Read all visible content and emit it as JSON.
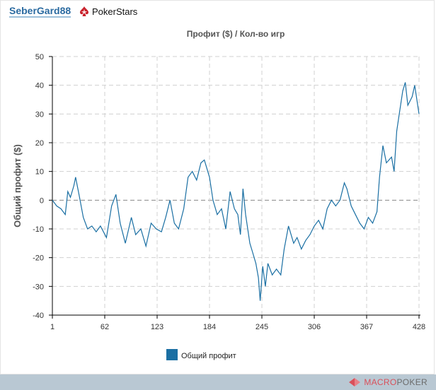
{
  "header": {
    "username": "SeberGard88",
    "room": "PokerStars",
    "room_icon": "pokerstars-spade-icon"
  },
  "footer": {
    "brand_part1": "MACRO",
    "brand_part2": "POKER",
    "brand_icon": "macropoker-logo-icon"
  },
  "colors": {
    "line": "#1a6fa3",
    "grid": "#d0d0d0",
    "zero": "#888888",
    "footer": "#b9c8d3",
    "brand_red": "#d9505a",
    "brand_gray": "#6b6b6b"
  },
  "chart_data": {
    "type": "line",
    "title": "Профит ($) / Кол-во игр",
    "xlabel": "",
    "ylabel": "Общий профит ($)",
    "xlim": [
      1,
      428
    ],
    "ylim": [
      -40,
      50
    ],
    "xticks": [
      1,
      62,
      123,
      184,
      245,
      306,
      367,
      428
    ],
    "yticks": [
      -40,
      -30,
      -20,
      -10,
      0,
      10,
      20,
      30,
      40,
      50
    ],
    "grid": true,
    "legend_position": "bottom",
    "series": [
      {
        "name": "Общий профит",
        "x": [
          1,
          6,
          11,
          16,
          19,
          22,
          26,
          28,
          32,
          37,
          42,
          47,
          52,
          57,
          64,
          70,
          75,
          80,
          86,
          93,
          98,
          104,
          110,
          116,
          122,
          128,
          133,
          138,
          143,
          148,
          154,
          159,
          164,
          169,
          174,
          178,
          184,
          188,
          193,
          198,
          203,
          208,
          213,
          217,
          220,
          223,
          226,
          231,
          234,
          238,
          241,
          243,
          246,
          249,
          252,
          257,
          262,
          267,
          271,
          276,
          282,
          286,
          291,
          296,
          301,
          306,
          311,
          316,
          321,
          326,
          331,
          336,
          341,
          344,
          349,
          354,
          359,
          364,
          369,
          374,
          379,
          382,
          386,
          390,
          396,
          399,
          402,
          405,
          409,
          412,
          415,
          420,
          423,
          428
        ],
        "y": [
          0,
          -2,
          -3,
          -5,
          3,
          1,
          5,
          8,
          2,
          -6,
          -10,
          -9,
          -11,
          -9,
          -13,
          -2,
          2,
          -8,
          -15,
          -6,
          -12,
          -10,
          -16,
          -8,
          -10,
          -11,
          -6,
          0,
          -8,
          -10,
          -3,
          8,
          10,
          7,
          13,
          14,
          8,
          0,
          -5,
          -3,
          -10,
          3,
          -3,
          -5,
          -12,
          4,
          -5,
          -15,
          -18,
          -22,
          -27,
          -35,
          -23,
          -30,
          -22,
          -26,
          -24,
          -26,
          -17,
          -9,
          -15,
          -13,
          -17,
          -14,
          -12,
          -9,
          -7,
          -10,
          -3,
          0,
          -2,
          0,
          6,
          4,
          -2,
          -5,
          -8,
          -10,
          -6,
          -8,
          -4,
          8,
          19,
          13,
          15,
          10,
          24,
          30,
          38,
          41,
          33,
          36,
          40,
          30
        ]
      }
    ]
  }
}
